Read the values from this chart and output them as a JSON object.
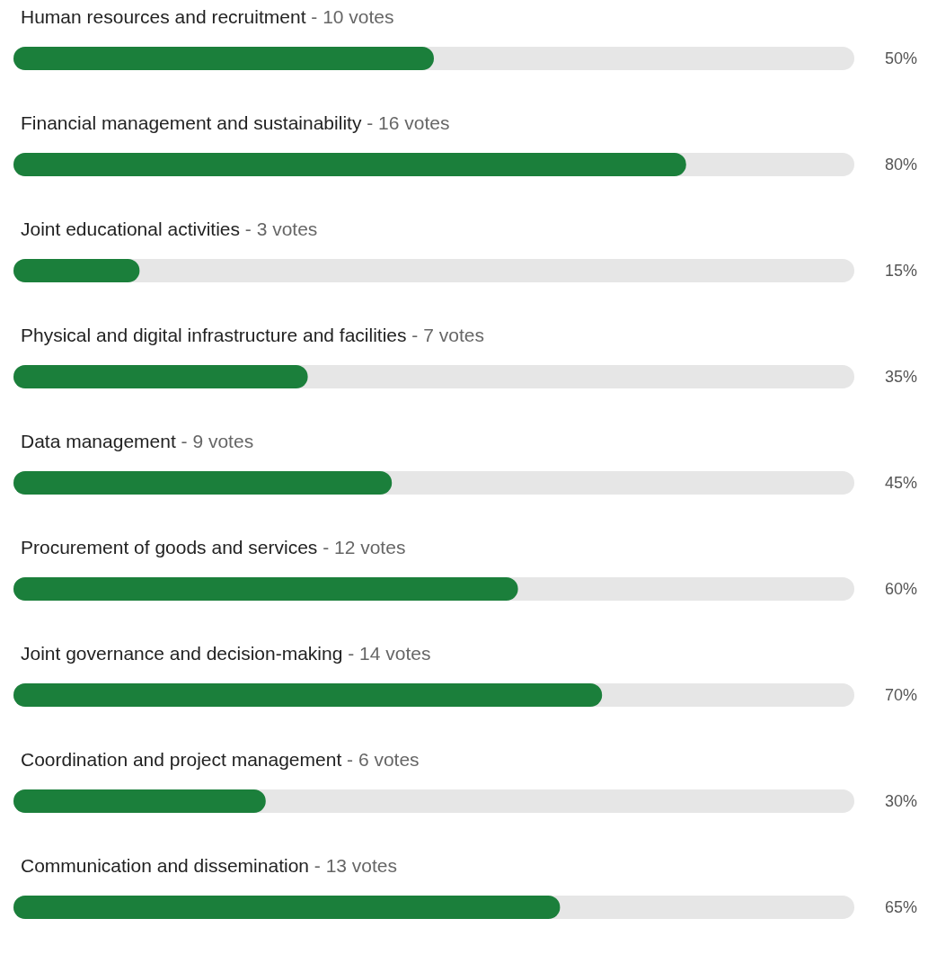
{
  "chart_data": {
    "type": "bar",
    "orientation": "horizontal",
    "tick_labels": "y",
    "categories": [
      "Human resources and recruitment - 10 votes",
      "Financial management and sustainability - 16 votes",
      "Joint educational activities - 3 votes",
      "Physical and digital infrastructure and facilities - 7 votes",
      "Data management - 9 votes",
      "Procurement of goods and services - 12 votes",
      "Joint governance and decision-making - 14 votes",
      "Coordination and project management - 6 votes",
      "Communication and dissemination - 13 votes"
    ],
    "values": [
      50,
      80,
      15,
      35,
      45,
      60,
      70,
      30,
      65
    ],
    "value_labels": [
      "50%",
      "80%",
      "15%",
      "35%",
      "45%",
      "60%",
      "70%",
      "30%",
      "65%"
    ],
    "color": "#1b7f3b",
    "xlim": [
      0,
      100
    ]
  }
}
